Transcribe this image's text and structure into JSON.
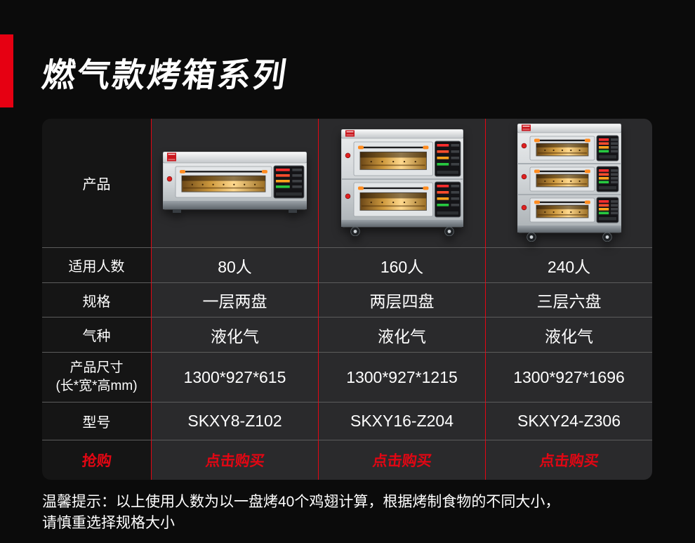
{
  "page": {
    "bg_color": "#0b0b0b",
    "accent_red": "#e60012",
    "separator_red": "#e30613",
    "row_separator_gray": "#5c5c5c"
  },
  "header": {
    "title": "燃气款烤箱系列"
  },
  "table": {
    "row_labels": {
      "product": "产品",
      "capacity": "适用人数",
      "spec": "规格",
      "gas": "气种",
      "size_line1": "产品尺寸",
      "size_line2": "(长*宽*高mm)",
      "model": "型号",
      "buy": "抢购"
    },
    "products": [
      {
        "decks": 1,
        "capacity": "80人",
        "spec": "一层两盘",
        "gas": "液化气",
        "size": "1300*927*615",
        "model": "SKXY8-Z102",
        "buy_label": "点击购买"
      },
      {
        "decks": 2,
        "capacity": "160人",
        "spec": "两层四盘",
        "gas": "液化气",
        "size": "1300*927*1215",
        "model": "SKXY16-Z204",
        "buy_label": "点击购买"
      },
      {
        "decks": 3,
        "capacity": "240人",
        "spec": "三层六盘",
        "gas": "液化气",
        "size": "1300*927*1696",
        "model": "SKXY24-Z306",
        "buy_label": "点击购买"
      }
    ]
  },
  "footer": {
    "note_line1": "温馨提示：以上使用人数为以一盘烤40个鸡翅计算，根据烤制食物的不同大小，",
    "note_line2": "请慎重选择规格大小"
  }
}
